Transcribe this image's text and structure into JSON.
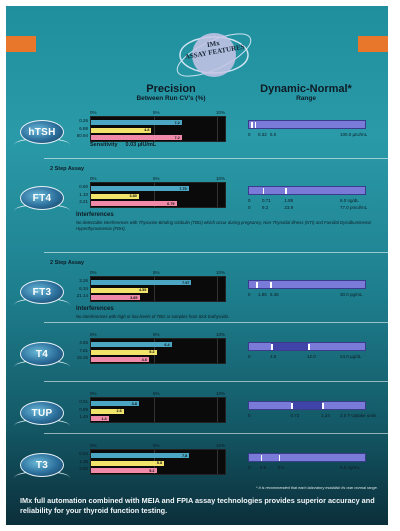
{
  "badge": {
    "line1": "IMx",
    "line2": "ASSAY FEATURES"
  },
  "headers": {
    "precision_title": "Precision",
    "precision_sub": "Between Run CV's (%)",
    "range_title": "Dynamic-Normal*",
    "range_sub": "Range"
  },
  "scale_labels": [
    "0%",
    "5%",
    "10%"
  ],
  "colors": {
    "teal": "#4aa6c2",
    "yellow": "#f2e46a",
    "pink": "#f08aa8",
    "range": "#7a7bd8",
    "accent": "#e9772b"
  },
  "assays": [
    {
      "name": "hTSH",
      "levels": [
        "0.26",
        "6.88",
        "50.94"
      ],
      "cv_values": [
        7.2,
        4.8,
        7.2
      ],
      "cv_labels": [
        "7.2",
        "4.8",
        "7.2"
      ],
      "range_labels": [
        "0",
        "0.32",
        "5.0",
        "100.0 µIU/mL"
      ],
      "sensitivity_label": "Sensitivity",
      "sensitivity_value": "0.03 µIU/mL"
    },
    {
      "name": "FT4",
      "step": "2 Step Assay",
      "levels": [
        "0.60",
        "1.10",
        "3.21"
      ],
      "cv_values": [
        7.75,
        3.8,
        6.79
      ],
      "cv_labels": [
        "7.75",
        "3.80",
        "6.79"
      ],
      "range_labels": [
        "0",
        "0.71",
        "1.85",
        "6.0 ng/dL",
        "0",
        "9.2",
        "23.9",
        "77.0 pmol/mL"
      ],
      "interference_title": "Interferences",
      "interference_text": "No detectable interferences with Thyroxine Binding Globulin (TBG) which occur during pregnancy, Non-Thyroidal Illness (NTI) and Familial Dysalbuminemic Hyperthyroxinemia (FDH)."
    },
    {
      "name": "FT3",
      "step": "2 Step Assay",
      "levels": [
        "3.26",
        "6.34",
        "21.14"
      ],
      "cv_values": [
        7.97,
        4.55,
        3.85
      ],
      "cv_labels": [
        "7.97",
        "4.55",
        "3.85"
      ],
      "unit": "pg/mL",
      "range_labels": [
        "0",
        "1.85",
        "5.35",
        "30.0 pg/mL"
      ],
      "interference_title": "Interferences",
      "interference_text": "No interferences with high or low levels of TBG or samples from Sick Euthyroids."
    },
    {
      "name": "T4",
      "levels": [
        "4.65",
        "7.61",
        "15.25"
      ],
      "cv_values": [
        6.4,
        5.2,
        4.6
      ],
      "cv_labels": [
        "6.4",
        "5.2",
        "4.6"
      ],
      "unit": "µg/dL",
      "range_labels": [
        "0",
        "4.5",
        "12.0",
        "24.0 µg/dL"
      ]
    },
    {
      "name": "TUP",
      "levels": [
        "0.51",
        "0.99",
        "1.49"
      ],
      "cv_values": [
        3.8,
        2.6,
        1.4
      ],
      "cv_labels": [
        "3.8",
        "2.6",
        "1.4"
      ],
      "unit": "T-Uptake",
      "range_labels": [
        "0",
        "0.72",
        "1.24",
        "2.0 T-Uptake units"
      ]
    },
    {
      "name": "T3",
      "levels": [
        "0.64",
        "1.38",
        "3.56"
      ],
      "cv_values": [
        7.8,
        5.8,
        5.2
      ],
      "cv_labels": [
        "7.8",
        "5.8",
        "5.2"
      ],
      "unit": "ng/mL",
      "range_labels": [
        "0",
        "0.8",
        "2.0",
        "8.0 ng/mL"
      ]
    }
  ],
  "footnote": "* It is recommended that each laboratory establish its own normal range.",
  "bottom_text": "IMx full automation combined with MEIA and FPIA assay technologies provides superior accuracy and reliability for your thyroid function testing."
}
